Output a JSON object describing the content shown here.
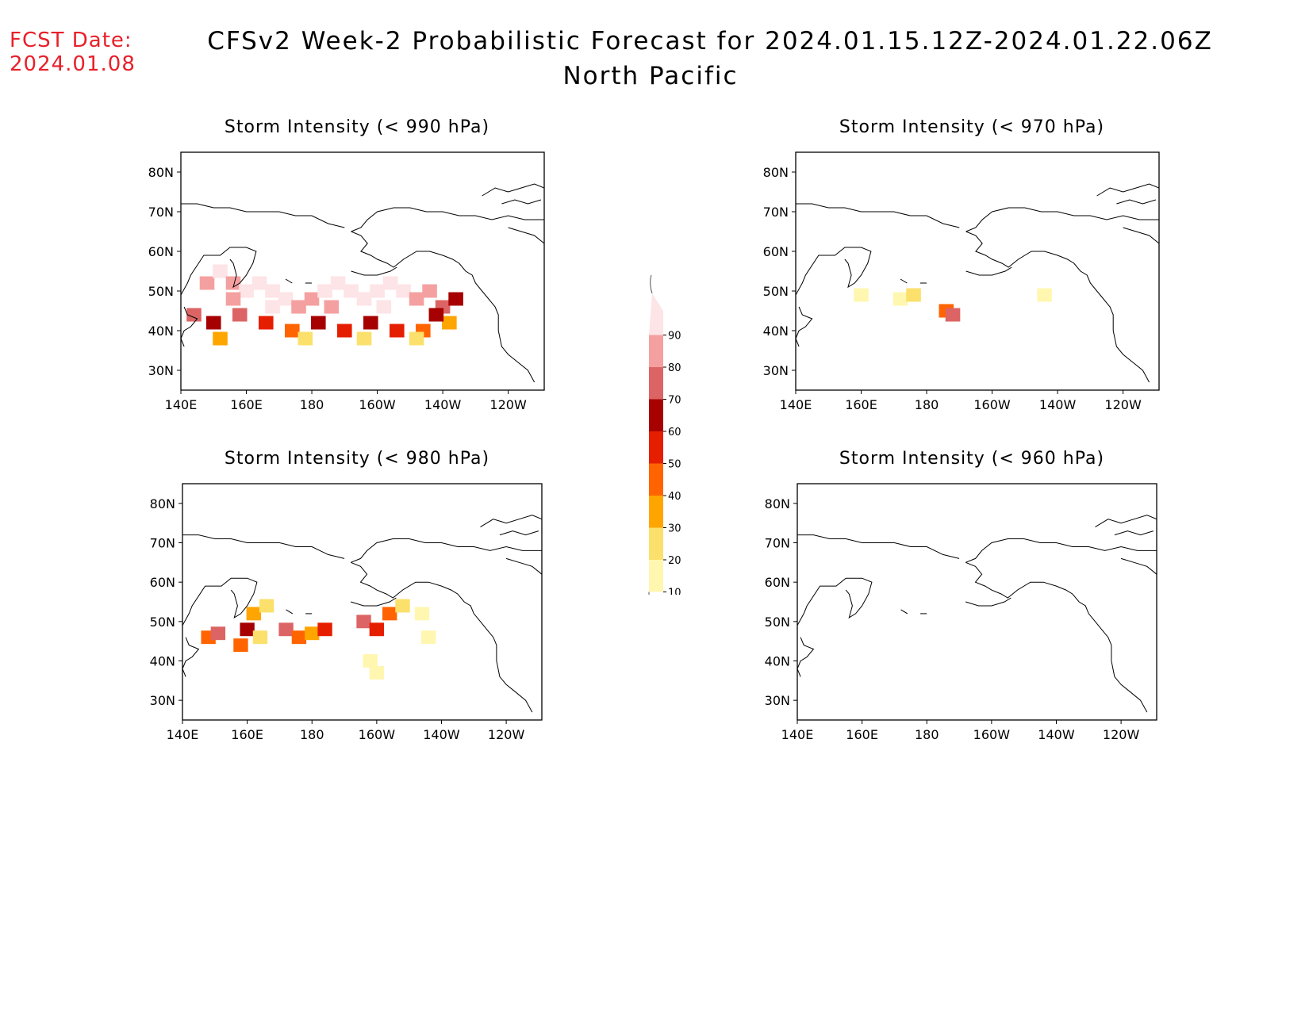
{
  "header": {
    "fcst_label": "FCST Date:",
    "fcst_date": "2024.01.08",
    "title": "CFSv2 Week-2 Probabilistic Forecast for 2024.01.15.12Z-2024.01.22.06Z",
    "subtitle": "North Pacific"
  },
  "panels": [
    {
      "id": "p990",
      "title": "Storm Intensity (< 990 hPa)"
    },
    {
      "id": "p970",
      "title": "Storm Intensity (< 970 hPa)"
    },
    {
      "id": "p980",
      "title": "Storm Intensity (< 980 hPa)"
    },
    {
      "id": "p960",
      "title": "Storm Intensity (< 960 hPa)"
    }
  ],
  "axes": {
    "lat_labels": [
      "80N",
      "70N",
      "60N",
      "50N",
      "40N",
      "30N"
    ],
    "lat_values": [
      80,
      70,
      60,
      50,
      40,
      30
    ],
    "lon_labels": [
      "140E",
      "160E",
      "180",
      "160W",
      "140W",
      "120W"
    ],
    "lon_values": [
      140,
      160,
      180,
      200,
      220,
      240
    ],
    "lon_range": [
      140,
      251
    ],
    "lat_range": [
      25,
      85
    ]
  },
  "legend": {
    "levels": [
      "10",
      "20",
      "30",
      "40",
      "50",
      "60",
      "70",
      "80",
      "90"
    ],
    "colors": [
      "#fff7b0",
      "#fbe06b",
      "#ffa500",
      "#ff6400",
      "#e61e00",
      "#a60000",
      "#dc6464",
      "#f5a0a0",
      "#fde4e6"
    ]
  },
  "chart_data": {
    "type": "heatmap",
    "units": "probability (%)",
    "panels": [
      {
        "name": "Storm Intensity (< 990 hPa)",
        "cells": [
          [
            148,
            52,
            80
          ],
          [
            152,
            55,
            90
          ],
          [
            156,
            52,
            85
          ],
          [
            160,
            50,
            90
          ],
          [
            164,
            52,
            95
          ],
          [
            168,
            50,
            95
          ],
          [
            172,
            48,
            90
          ],
          [
            176,
            46,
            85
          ],
          [
            180,
            48,
            85
          ],
          [
            184,
            50,
            90
          ],
          [
            188,
            52,
            90
          ],
          [
            192,
            50,
            95
          ],
          [
            196,
            48,
            90
          ],
          [
            200,
            50,
            95
          ],
          [
            204,
            52,
            95
          ],
          [
            208,
            50,
            90
          ],
          [
            212,
            48,
            85
          ],
          [
            216,
            50,
            80
          ],
          [
            220,
            46,
            70
          ],
          [
            224,
            48,
            60
          ],
          [
            144,
            44,
            70
          ],
          [
            150,
            42,
            60
          ],
          [
            158,
            44,
            70
          ],
          [
            166,
            42,
            50
          ],
          [
            174,
            40,
            40
          ],
          [
            182,
            42,
            60
          ],
          [
            190,
            40,
            50
          ],
          [
            198,
            42,
            60
          ],
          [
            206,
            40,
            50
          ],
          [
            214,
            40,
            40
          ],
          [
            222,
            42,
            30
          ],
          [
            152,
            38,
            30
          ],
          [
            178,
            38,
            20
          ],
          [
            196,
            38,
            20
          ],
          [
            212,
            38,
            20
          ],
          [
            156,
            48,
            85
          ],
          [
            168,
            46,
            90
          ],
          [
            186,
            46,
            80
          ],
          [
            202,
            46,
            90
          ],
          [
            218,
            44,
            60
          ]
        ]
      },
      {
        "name": "Storm Intensity (< 970 hPa)",
        "cells": [
          [
            172,
            48,
            10
          ],
          [
            160,
            49,
            10
          ],
          [
            176,
            49,
            20
          ],
          [
            186,
            45,
            40
          ],
          [
            188,
            44,
            70
          ],
          [
            216,
            49,
            10
          ]
        ]
      },
      {
        "name": "Storm Intensity (< 980 hPa)",
        "cells": [
          [
            148,
            46,
            40
          ],
          [
            151,
            47,
            70
          ],
          [
            160,
            48,
            60
          ],
          [
            158,
            44,
            40
          ],
          [
            162,
            52,
            30
          ],
          [
            166,
            54,
            20
          ],
          [
            172,
            48,
            70
          ],
          [
            176,
            46,
            40
          ],
          [
            180,
            47,
            30
          ],
          [
            184,
            48,
            50
          ],
          [
            196,
            50,
            70
          ],
          [
            200,
            48,
            50
          ],
          [
            204,
            52,
            40
          ],
          [
            208,
            54,
            20
          ],
          [
            216,
            46,
            10
          ],
          [
            214,
            52,
            10
          ],
          [
            198,
            40,
            10
          ],
          [
            200,
            37,
            10
          ],
          [
            164,
            46,
            20
          ]
        ]
      },
      {
        "name": "Storm Intensity (< 960 hPa)",
        "cells": []
      }
    ]
  }
}
